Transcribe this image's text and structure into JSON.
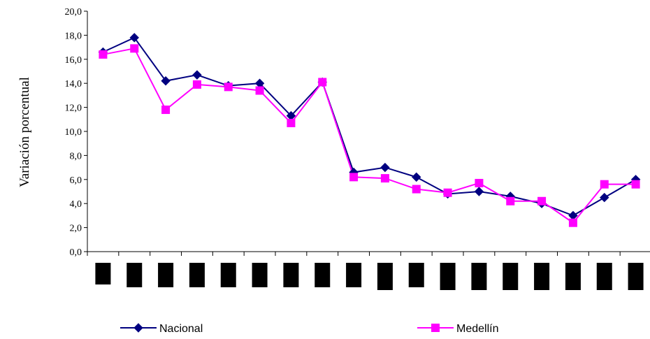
{
  "chart_data": {
    "type": "line",
    "title": "",
    "xlabel": "",
    "ylabel": "Variación porcentual",
    "ylim": [
      0,
      20
    ],
    "y_ticks": [
      "0,0",
      "2,0",
      "4,0",
      "6,0",
      "8,0",
      "10,0",
      "12,0",
      "14,0",
      "16,0",
      "18,0",
      "20,0"
    ],
    "categories": [
      "",
      "",
      "",
      "",
      "",
      "",
      "",
      "",
      "",
      "",
      "",
      "",
      "",
      "",
      "",
      "",
      "",
      ""
    ],
    "series": [
      {
        "name": "Nacional",
        "color": "#000080",
        "marker": "diamond",
        "values": [
          16.6,
          17.8,
          14.2,
          14.7,
          13.8,
          14.0,
          11.3,
          14.1,
          6.6,
          7.0,
          6.2,
          4.8,
          5.0,
          4.6,
          4.0,
          3.0,
          4.5,
          6.0
        ]
      },
      {
        "name": "Medellín",
        "color": "#FF00FF",
        "marker": "square",
        "values": [
          16.4,
          16.9,
          11.8,
          13.9,
          13.7,
          13.4,
          10.7,
          14.1,
          6.2,
          6.1,
          5.2,
          4.9,
          5.7,
          4.2,
          4.2,
          2.4,
          5.6,
          5.6
        ]
      }
    ],
    "grid": false,
    "legend_position": "bottom"
  }
}
